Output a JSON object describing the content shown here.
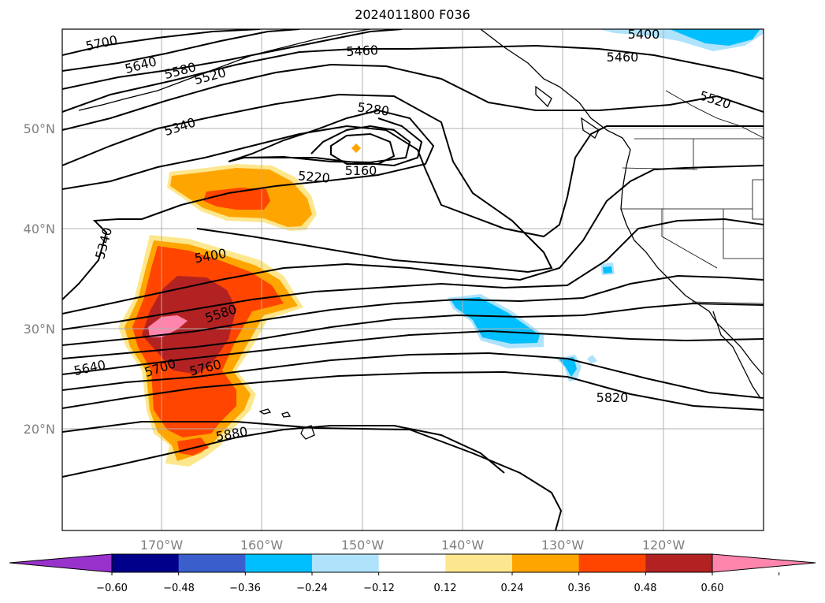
{
  "title": "2024011800 F036",
  "map": {
    "type": "contour-map",
    "region": "North Pacific / Western North America",
    "lon_labels": [
      "170°W",
      "160°W",
      "150°W",
      "140°W",
      "130°W",
      "120°W"
    ],
    "lat_labels": [
      "50°N",
      "40°N",
      "30°N",
      "20°N"
    ],
    "grid": true,
    "contour_labels": [
      "5700",
      "5640",
      "5580",
      "5520",
      "5460",
      "5400",
      "5460",
      "5520",
      "5280",
      "5340",
      "5220",
      "5160",
      "5340",
      "5400",
      "5580",
      "5640",
      "5700",
      "5760",
      "5820",
      "5880"
    ],
    "shading_colors": {
      "negative_outer": "#a4dcfc",
      "negative_inner": "#00bfff",
      "positive_1": "#fde78e",
      "positive_2": "#ffa500",
      "positive_3": "#ff4500",
      "positive_4": "#b22222",
      "positive_5": "#ff85ac"
    }
  },
  "colorbar": {
    "tick_labels": [
      "−0.60",
      "−0.48",
      "−0.36",
      "−0.24",
      "−0.12",
      "0.12",
      "0.24",
      "0.36",
      "0.48",
      "0.60"
    ],
    "colors": [
      "#9932cc",
      "#00008b",
      "#3a5fcd",
      "#00bfff",
      "#aee3fb",
      "#ffffff",
      "#fde78e",
      "#ffa500",
      "#ff4500",
      "#b22222",
      "#ff85ac"
    ]
  }
}
